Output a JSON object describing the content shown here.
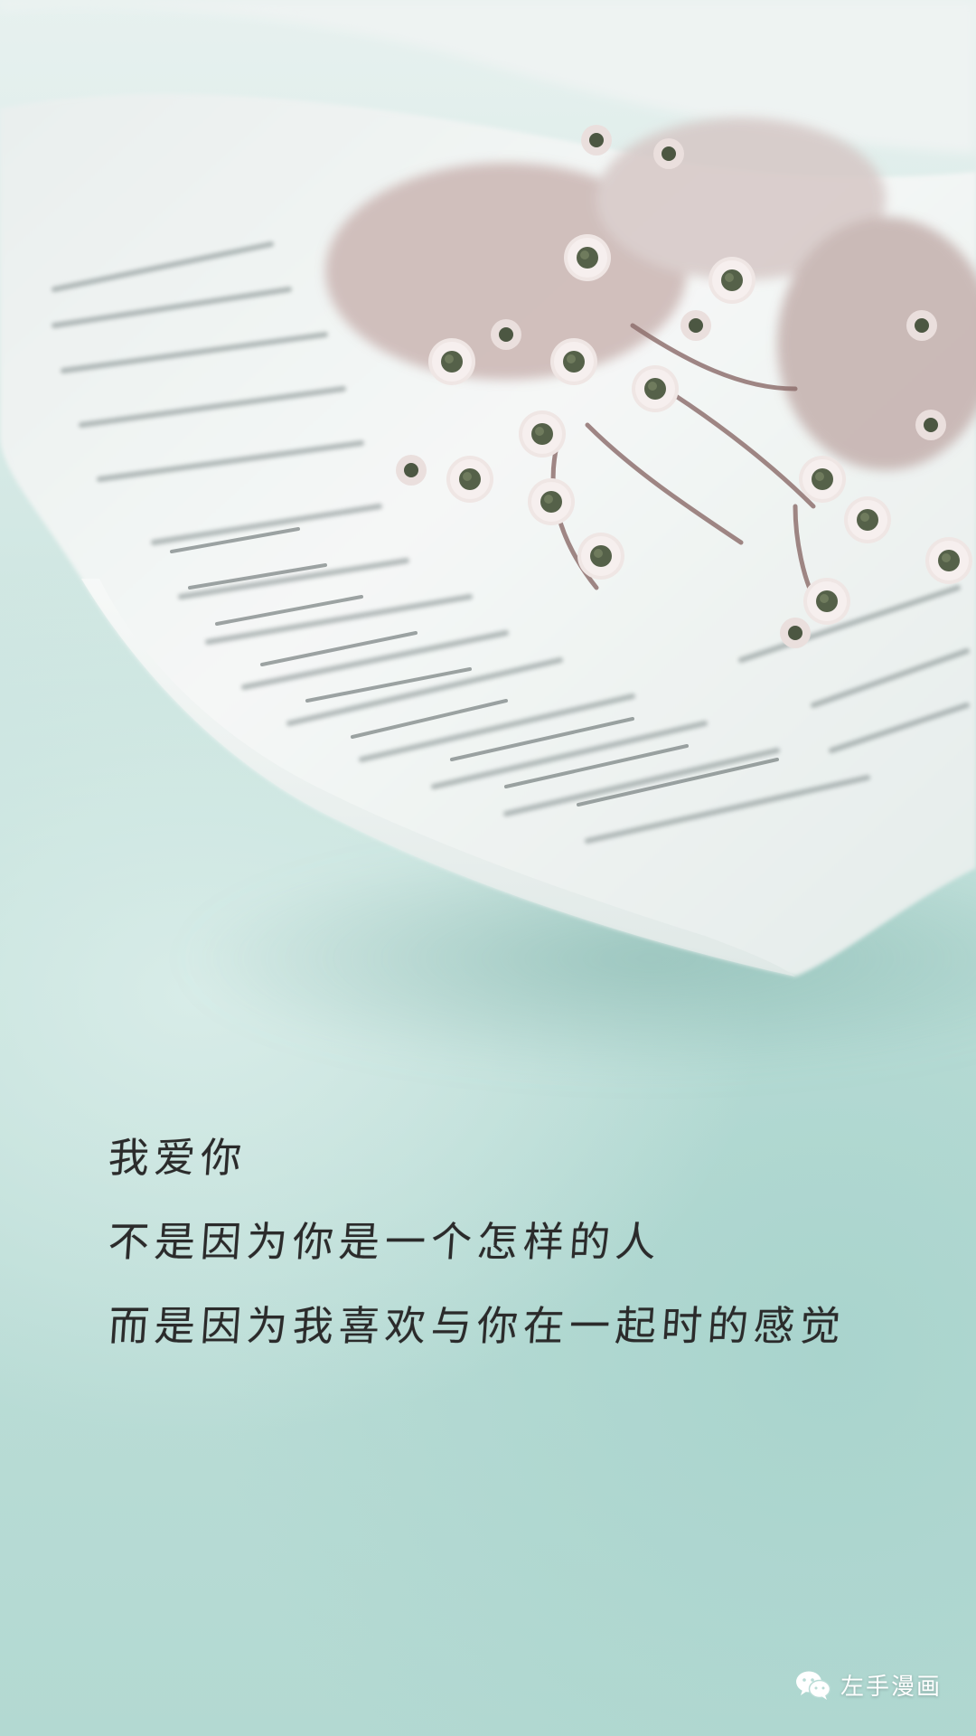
{
  "quote": {
    "lines": [
      "我爱你",
      "不是因为你是一个怎样的人",
      "而是因为我喜欢与你在一起时的感觉"
    ]
  },
  "watermark": {
    "icon": "wechat-icon",
    "text": "左手漫画"
  },
  "colors": {
    "background": "#b9dcd6",
    "paper": "#f3f6f5",
    "text": "#2b2b2b",
    "flower_petal": "#ece2e0",
    "flower_center": "#4f5a45",
    "flower_stem": "#8a6a68"
  }
}
